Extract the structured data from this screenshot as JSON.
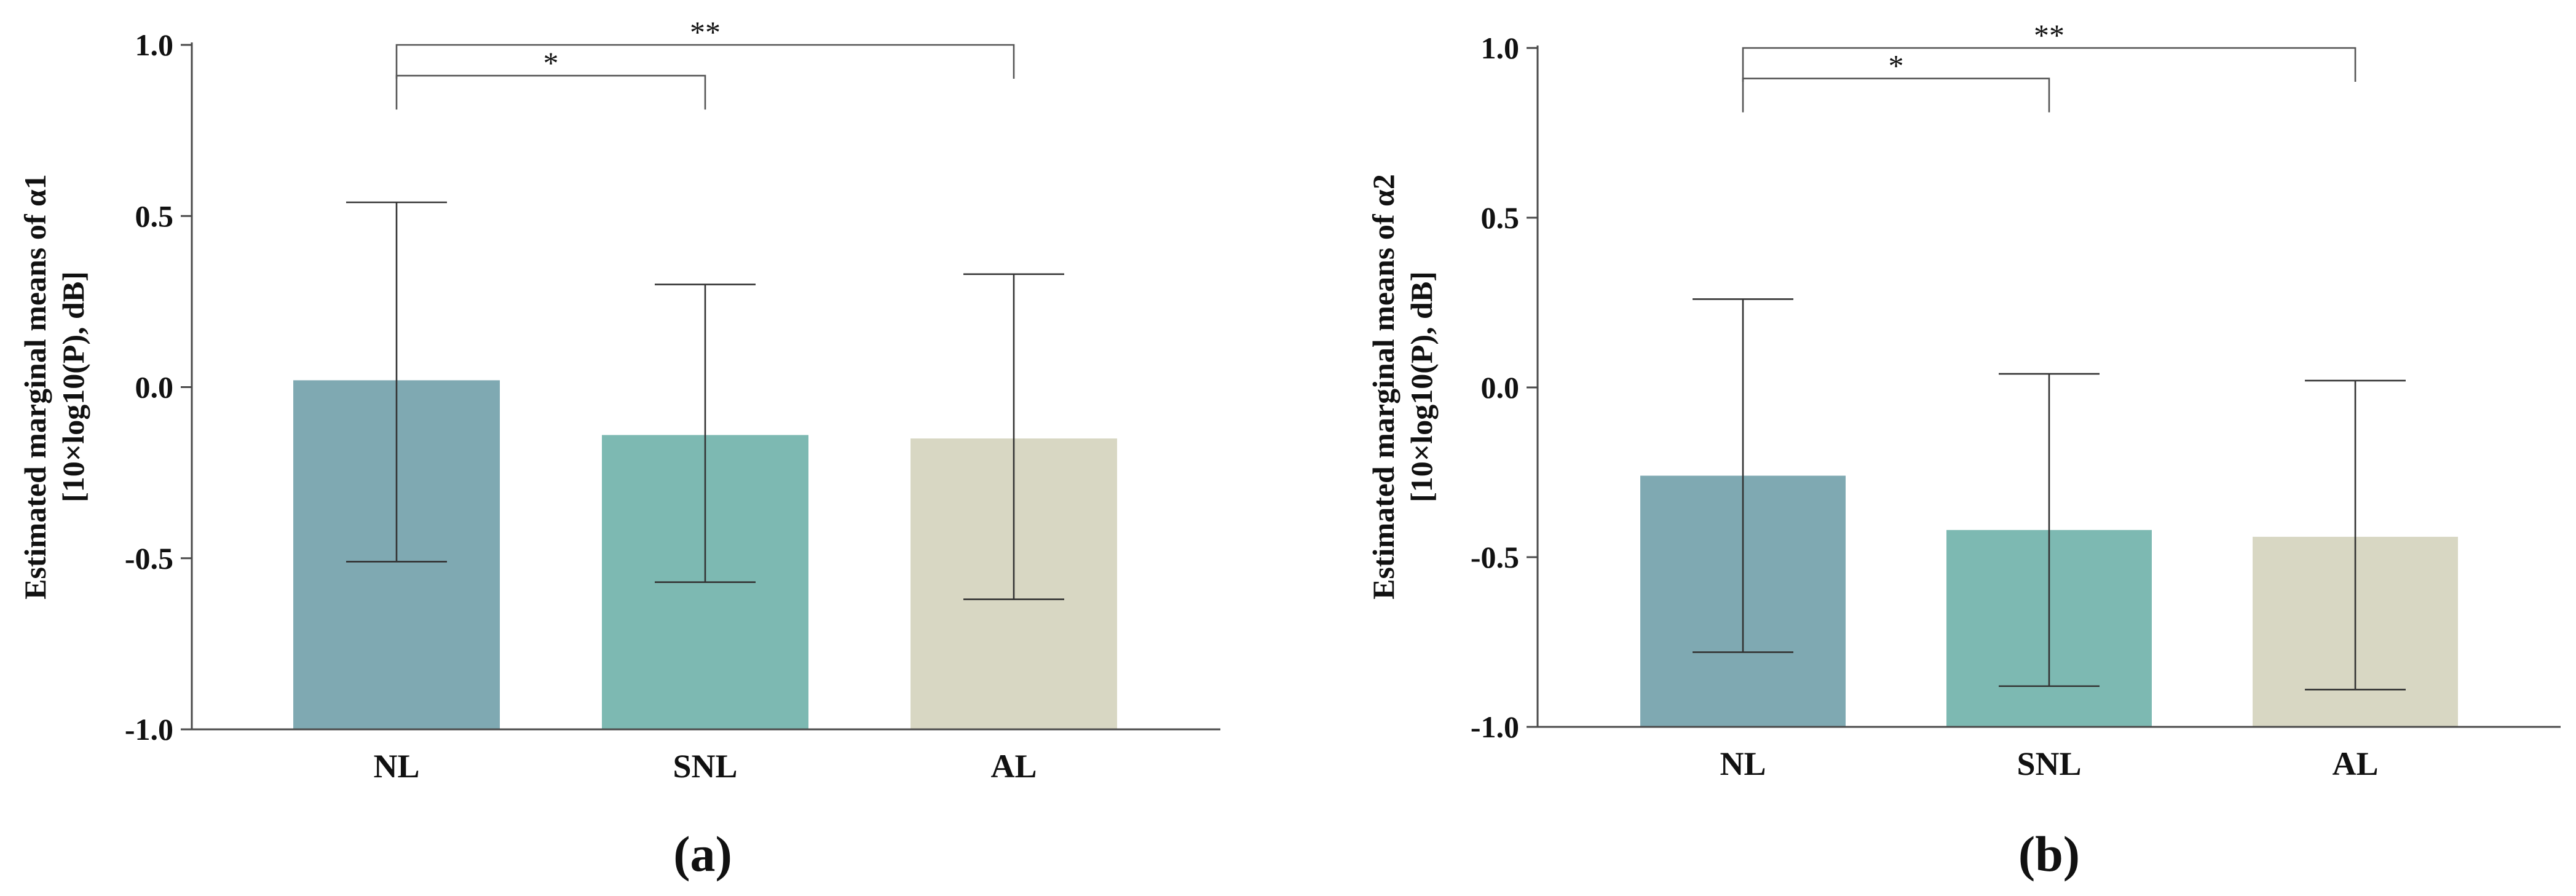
{
  "chart_data": [
    {
      "type": "bar",
      "panel_label": "(a)",
      "ylabel_lines": [
        "Estimated marginal means of α1",
        "[10×log10(P), dB]"
      ],
      "categories": [
        "NL",
        "SNL",
        "AL"
      ],
      "values": [
        0.02,
        -0.14,
        -0.15
      ],
      "error_high": [
        0.54,
        0.3,
        0.33
      ],
      "error_low": [
        -0.51,
        -0.57,
        -0.62
      ],
      "colors": [
        "#7fa9b2",
        "#7db9b2",
        "#d8d7c3"
      ],
      "ylim": [
        -1.0,
        1.0
      ],
      "yticks": [
        -1.0,
        -0.5,
        0.0,
        0.5,
        1.0
      ],
      "ytick_labels": [
        "-1.0",
        "-0.5",
        "0.0",
        "0.5",
        "1.0"
      ],
      "grid": false,
      "significance": [
        {
          "from": "NL",
          "to": "SNL",
          "label": "*",
          "level": 0.91
        },
        {
          "from": "NL",
          "to": "AL",
          "label": "**",
          "level": 1.0
        }
      ]
    },
    {
      "type": "bar",
      "panel_label": "(b)",
      "ylabel_lines": [
        "Estimated marginal means of  α2",
        "[10×log10(P), dB]"
      ],
      "categories": [
        "NL",
        "SNL",
        "AL"
      ],
      "values": [
        -0.26,
        -0.42,
        -0.44
      ],
      "error_high": [
        0.26,
        0.04,
        0.02
      ],
      "error_low": [
        -0.78,
        -0.88,
        -0.89
      ],
      "colors": [
        "#7fa9b2",
        "#7db9b2",
        "#d8d7c3"
      ],
      "ylim": [
        -1.0,
        1.0
      ],
      "yticks": [
        -1.0,
        -0.5,
        0.0,
        0.5,
        1.0
      ],
      "ytick_labels": [
        "-1.0",
        "-0.5",
        "0.0",
        "0.5",
        "1.0"
      ],
      "grid": false,
      "significance": [
        {
          "from": "NL",
          "to": "SNL",
          "label": "*",
          "level": 0.91
        },
        {
          "from": "NL",
          "to": "AL",
          "label": "**",
          "level": 1.0
        }
      ]
    }
  ]
}
